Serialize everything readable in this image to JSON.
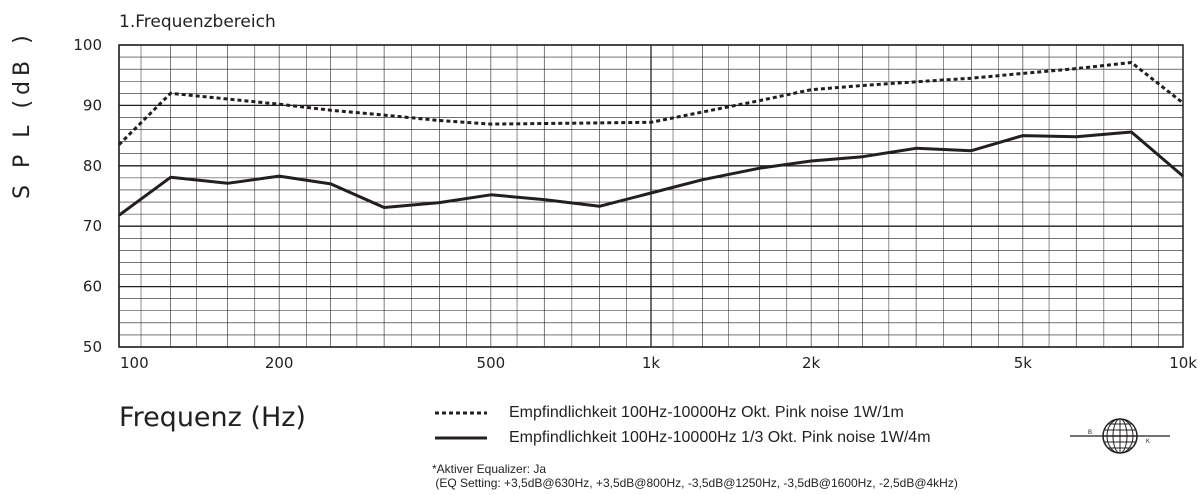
{
  "chart_data": {
    "type": "line",
    "title": "1.Frequenzbereich",
    "xlabel": "Frequenz (Hz)",
    "ylabel": "S P L (dB )",
    "xscale": "log",
    "xlim": [
      100,
      10000
    ],
    "ylim": [
      50,
      100
    ],
    "yticks": [
      {
        "value": 100,
        "label": "100"
      },
      {
        "value": 90,
        "label": "90"
      },
      {
        "value": 80,
        "label": "80"
      },
      {
        "value": 70,
        "label": "70"
      },
      {
        "value": 60,
        "label": "60"
      },
      {
        "value": 50,
        "label": "50"
      }
    ],
    "xticks": [
      {
        "value": 100,
        "label": "100"
      },
      {
        "value": 200,
        "label": "200"
      },
      {
        "value": 500,
        "label": "500"
      },
      {
        "value": 1000,
        "label": "1k"
      },
      {
        "value": 2000,
        "label": "2k"
      },
      {
        "value": 5000,
        "label": "5k"
      },
      {
        "value": 10000,
        "label": "10k"
      }
    ],
    "grid": true,
    "series": [
      {
        "name": "Empfindlichkeit 100Hz-10000Hz Okt. Pink noise 1W/1m",
        "style": "dotted",
        "x": [
          100,
          125,
          200,
          250,
          315,
          400,
          500,
          630,
          800,
          1000,
          1250,
          1600,
          2000,
          2500,
          3150,
          4000,
          5000,
          6300,
          8000,
          10000
        ],
        "y": [
          83.5,
          92,
          90.2,
          89.2,
          88.4,
          87.5,
          86.9,
          87,
          87.1,
          87.2,
          88.9,
          90.8,
          92.6,
          93.3,
          93.9,
          94.5,
          95.3,
          96.1,
          97.1,
          90.4
        ]
      },
      {
        "name": "Empfindlichkeit 100Hz-10000Hz 1/3 Okt. Pink noise 1W/4m",
        "style": "solid",
        "x": [
          100,
          125,
          160,
          200,
          250,
          315,
          400,
          500,
          630,
          800,
          1000,
          1250,
          1600,
          2000,
          2500,
          3150,
          4000,
          5000,
          6300,
          8000,
          10000
        ],
        "y": [
          71.8,
          78.1,
          77.1,
          78.3,
          77,
          73.1,
          73.9,
          75.2,
          74.4,
          73.3,
          75.5,
          77.7,
          79.6,
          80.8,
          81.5,
          82.9,
          82.5,
          85,
          84.8,
          85.6,
          78.3
        ]
      }
    ]
  },
  "legend": {
    "line1": "Empfindlichkeit 100Hz-10000Hz Okt. Pink noise 1W/1m",
    "line2": "Empfindlichkeit 100Hz-10000Hz 1/3 Okt. Pink noise 1W/4m"
  },
  "footnote": {
    "line1": "*Aktiver Equalizer: Ja",
    "line2": " (EQ Setting: +3,5dB@630Hz, +3,5dB@800Hz, -3,5dB@1250Hz, -3,5dB@1600Hz, -2,5dB@4kHz)"
  },
  "logo": {
    "letters": [
      "B",
      "K"
    ],
    "icon": "globe-logo-icon"
  },
  "colors": {
    "ink": "#231f20",
    "background": "#ffffff"
  }
}
